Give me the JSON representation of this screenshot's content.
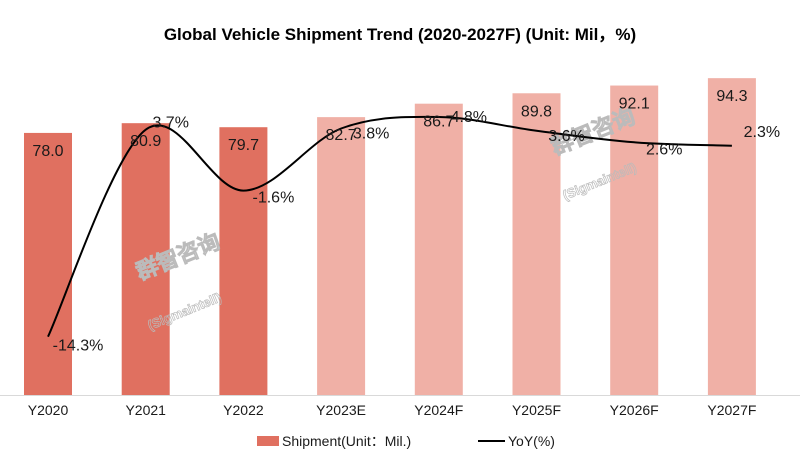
{
  "chart_data": {
    "type": "bar+line",
    "title": "Global Vehicle Shipment Trend (2020-2027F) (Unit: Mil，%)",
    "categories": [
      "Y2020",
      "Y2021",
      "Y2022",
      "Y2023E",
      "Y2024F",
      "Y2025F",
      "Y2026F",
      "Y2027F"
    ],
    "series": [
      {
        "name": "Shipment(Unit：Mil.)",
        "type": "bar",
        "values": [
          78.0,
          80.9,
          79.7,
          82.7,
          86.7,
          89.8,
          92.1,
          94.3
        ],
        "labels": [
          "78.0",
          "80.9",
          "79.7",
          "82.7",
          "86.7",
          "89.8",
          "92.1",
          "94.3"
        ]
      },
      {
        "name": "YoY(%)",
        "type": "line",
        "values": [
          -14.3,
          3.7,
          -1.6,
          3.8,
          4.8,
          3.6,
          2.6,
          2.3
        ],
        "labels": [
          "-14.3%",
          "3.7%",
          "-1.6%",
          "3.8%",
          "4.8%",
          "3.6%",
          "2.6%",
          "2.3%"
        ]
      }
    ],
    "ylim": [
      0,
      100
    ],
    "grid": false,
    "legend": "bottom",
    "colors": {
      "actual": "#e07060",
      "forecast": "#f0b0a6",
      "line": "#000000"
    }
  },
  "watermark": {
    "cn": "群智咨询",
    "en": "(Sigmaintell)"
  }
}
